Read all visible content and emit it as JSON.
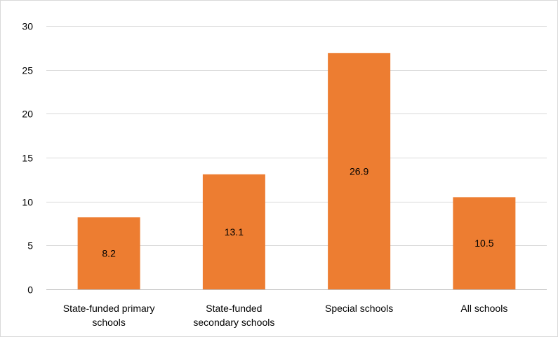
{
  "chart_data": {
    "type": "bar",
    "title": "",
    "xlabel": "",
    "ylabel": "",
    "categories": [
      [
        "State-funded primary",
        "schools"
      ],
      [
        "State-funded",
        "secondary schools"
      ],
      [
        "Special schools"
      ],
      [
        "All schools"
      ]
    ],
    "values": [
      8.2,
      13.1,
      26.9,
      10.5
    ],
    "data_labels": [
      "8.2",
      "13.1",
      "26.9",
      "10.5"
    ],
    "ylim": [
      0,
      30
    ],
    "yticks": [
      0,
      5,
      10,
      15,
      20,
      25,
      30
    ],
    "ytick_labels": [
      "0",
      "5",
      "10",
      "15",
      "20",
      "25",
      "30"
    ],
    "grid": true,
    "legend": "none",
    "colors": {
      "bar": "#ed7d31",
      "grid": "#d9d9d9",
      "axis": "#bfbfbf"
    }
  }
}
